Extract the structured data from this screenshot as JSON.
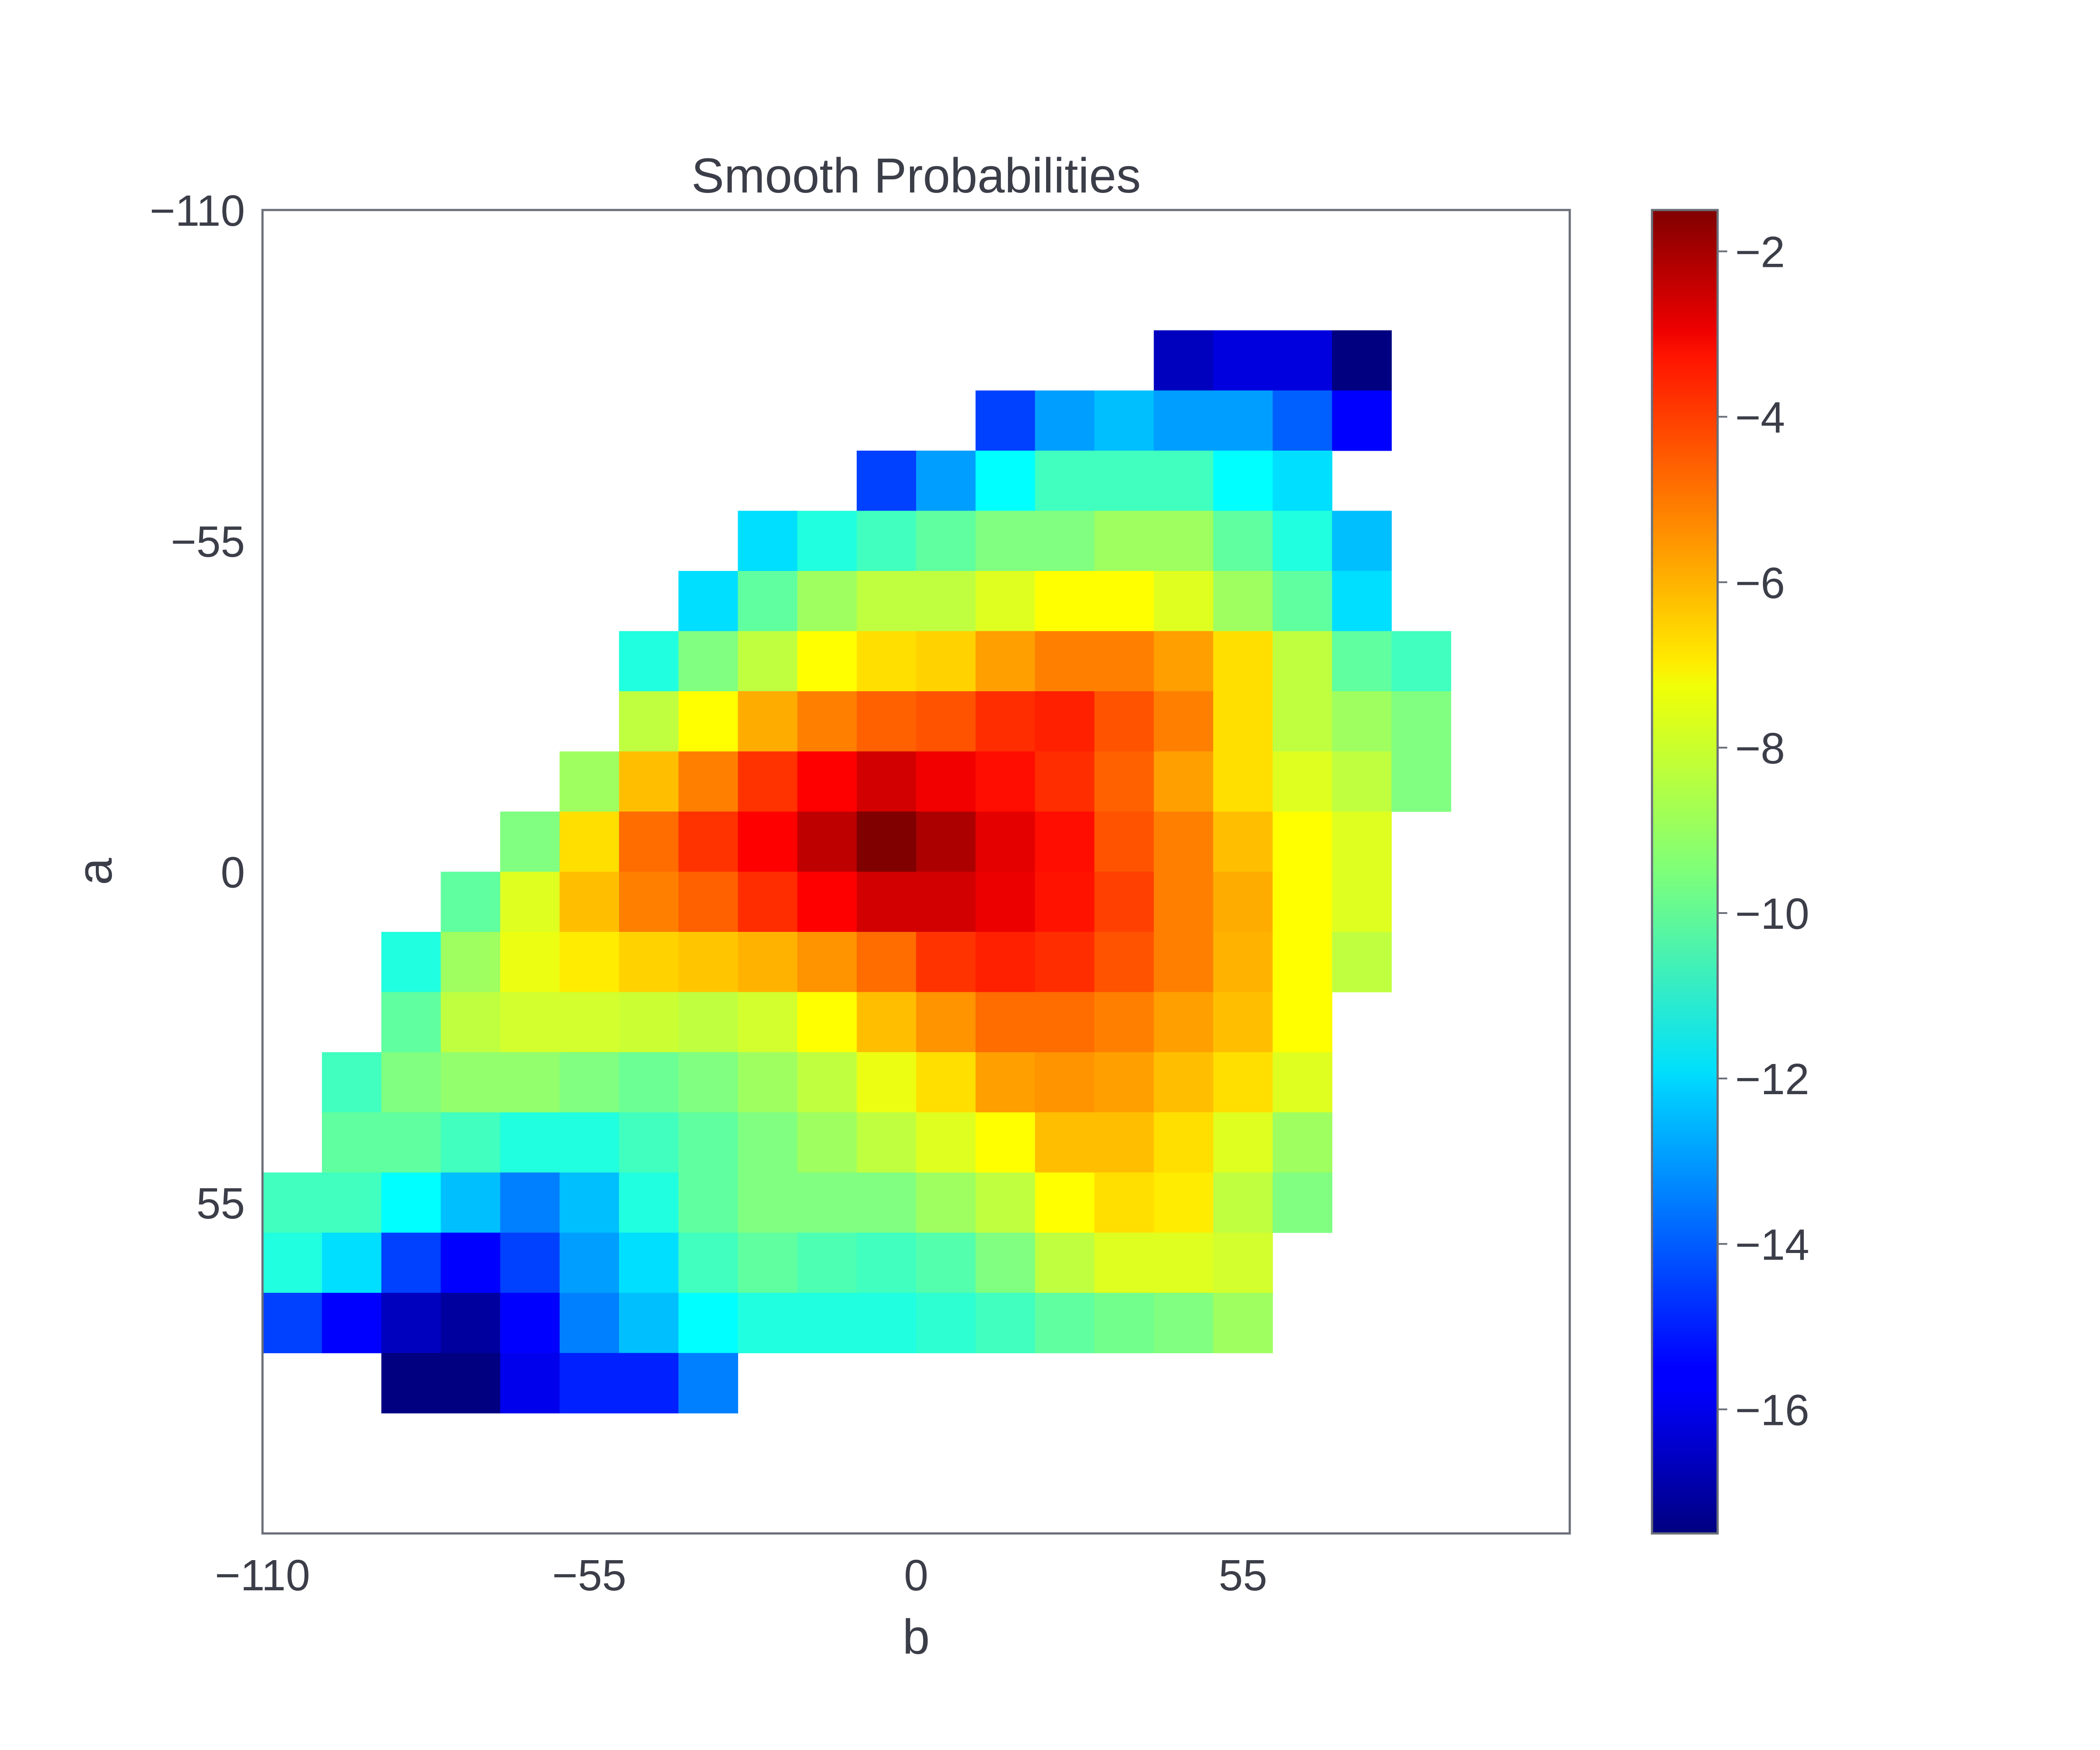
{
  "chart_data": {
    "type": "heatmap",
    "title": "Smooth Probabilities",
    "xlabel": "b",
    "ylabel": "a",
    "x_range": [
      -110,
      110
    ],
    "y_range": [
      -110,
      110
    ],
    "y_inverted": true,
    "x_ticks": [
      -110,
      -55,
      0,
      55
    ],
    "y_ticks": [
      -110,
      -55,
      0,
      55
    ],
    "x_tick_labels": [
      "−110",
      "−55",
      "0",
      "55"
    ],
    "y_tick_labels": [
      "−110",
      "−55",
      "0",
      "55"
    ],
    "grid": false,
    "colormap": "jet",
    "colorbar": {
      "min": -17.5,
      "max": -1.5,
      "ticks": [
        -2,
        -4,
        -6,
        -8,
        -10,
        -12,
        -14,
        -16
      ],
      "tick_labels": [
        "−2",
        "−4",
        "−6",
        "−8",
        "−10",
        "−12",
        "−14",
        "−16"
      ]
    },
    "cell_size": 10,
    "rows": [
      {
        "a": -85,
        "b_start": 45,
        "values": [
          -16.5,
          -16,
          -16,
          -17.5
        ]
      },
      {
        "a": -75,
        "b_start": 15,
        "values": [
          -14.5,
          -13,
          -12.5,
          -13,
          -13,
          -14,
          -15.5
        ]
      },
      {
        "a": -65,
        "b_start": -5,
        "values": [
          -14.5,
          -13,
          -11.5,
          -10.5,
          -10.5,
          -10.5,
          -11.5,
          -12
        ]
      },
      {
        "a": -55,
        "b_start": -25,
        "values": [
          -12,
          -11,
          -10.5,
          -10,
          -9.5,
          -9.5,
          -9,
          -9,
          -10,
          -11,
          -12.5
        ]
      },
      {
        "a": -45,
        "b_start": -35,
        "values": [
          -12,
          -10,
          -9,
          -8.5,
          -8.5,
          -8,
          -7.5,
          -7.5,
          -8,
          -9,
          -10,
          -12
        ]
      },
      {
        "a": -35,
        "b_start": -45,
        "values": [
          -11,
          -9.5,
          -8.5,
          -7.5,
          -7,
          -6.8,
          -6,
          -5.5,
          -5.5,
          -6,
          -7,
          -8.5,
          -10,
          -10.5
        ]
      },
      {
        "a": -25,
        "b_start": -45,
        "values": [
          -8.5,
          -7.5,
          -6.2,
          -5.5,
          -5,
          -4.8,
          -4.2,
          -4,
          -4.8,
          -5.5,
          -7,
          -8.5,
          -9,
          -9.5
        ]
      },
      {
        "a": -15,
        "b_start": -55,
        "values": [
          -9,
          -6.5,
          -5.5,
          -4.3,
          -3.5,
          -2.8,
          -3.3,
          -3.7,
          -4.2,
          -5,
          -6,
          -7,
          -8,
          -8.5,
          -9.5
        ]
      },
      {
        "a": -5,
        "b_start": -65,
        "values": [
          -9.5,
          -7,
          -5.2,
          -4.3,
          -3.5,
          -2.5,
          -1.5,
          -2.2,
          -3.1,
          -3.7,
          -4.8,
          -5.5,
          -6.5,
          -7.5,
          -8
        ]
      },
      {
        "a": 5,
        "b_start": -75,
        "values": [
          -10,
          -8,
          -6.5,
          -5.5,
          -5,
          -4.2,
          -3.5,
          -2.8,
          -2.8,
          -3.2,
          -3.8,
          -4.5,
          -5.5,
          -6.2,
          -7.5,
          -8
        ]
      },
      {
        "a": 15,
        "b_start": -85,
        "values": [
          -11,
          -9,
          -7.8,
          -7.2,
          -6.8,
          -6.6,
          -6.3,
          -5.8,
          -5.2,
          -4.3,
          -4,
          -4.2,
          -4.8,
          -5.5,
          -6.3,
          -7.5,
          -8.5
        ]
      },
      {
        "a": 25,
        "b_start": -85,
        "values": [
          -10,
          -8.5,
          -8.2,
          -8.2,
          -8.3,
          -8.5,
          -8.2,
          -7.5,
          -6.5,
          -5.8,
          -5.2,
          -5.2,
          -5.5,
          -6,
          -6.5,
          -7.5
        ]
      },
      {
        "a": 35,
        "b_start": -95,
        "values": [
          -10.5,
          -9.5,
          -9.2,
          -9.2,
          -9.5,
          -9.8,
          -9.5,
          -9,
          -8.5,
          -7.8,
          -7,
          -6,
          -5.8,
          -6,
          -6.5,
          -7,
          -8
        ]
      },
      {
        "a": 45,
        "b_start": -95,
        "values": [
          -10,
          -10,
          -10.5,
          -11,
          -11,
          -10.5,
          -10,
          -9.5,
          -9,
          -8.5,
          -8,
          -7.5,
          -6.5,
          -6.5,
          -7,
          -8,
          -9
        ]
      },
      {
        "a": 55,
        "b_start": -105,
        "values": [
          -10.5,
          -10.5,
          -11.5,
          -12.5,
          -13.5,
          -12.5,
          -11,
          -10,
          -9.5,
          -9.5,
          -9.5,
          -9,
          -8.5,
          -7.5,
          -7,
          -7.2,
          -8.5,
          -9.5
        ]
      },
      {
        "a": 65,
        "b_start": -105,
        "values": [
          -11,
          -12,
          -14.5,
          -15.5,
          -14.5,
          -13,
          -12,
          -10.5,
          -10,
          -10.3,
          -10.5,
          -10.2,
          -9.5,
          -8.5,
          -8,
          -8,
          -8.2
        ]
      },
      {
        "a": 75,
        "b_start": -115,
        "values": [
          -16,
          -14.5,
          -15.5,
          -16.5,
          -17,
          -15.5,
          -13.5,
          -12.5,
          -11.5,
          -11,
          -11,
          -11,
          -10.8,
          -10.5,
          -10,
          -9.7,
          -9.5,
          -9
        ]
      },
      {
        "a": 85,
        "b_start": -85,
        "values": [
          -17.5,
          -17.5,
          -15.8,
          -15,
          -15,
          -13.5
        ]
      }
    ]
  }
}
